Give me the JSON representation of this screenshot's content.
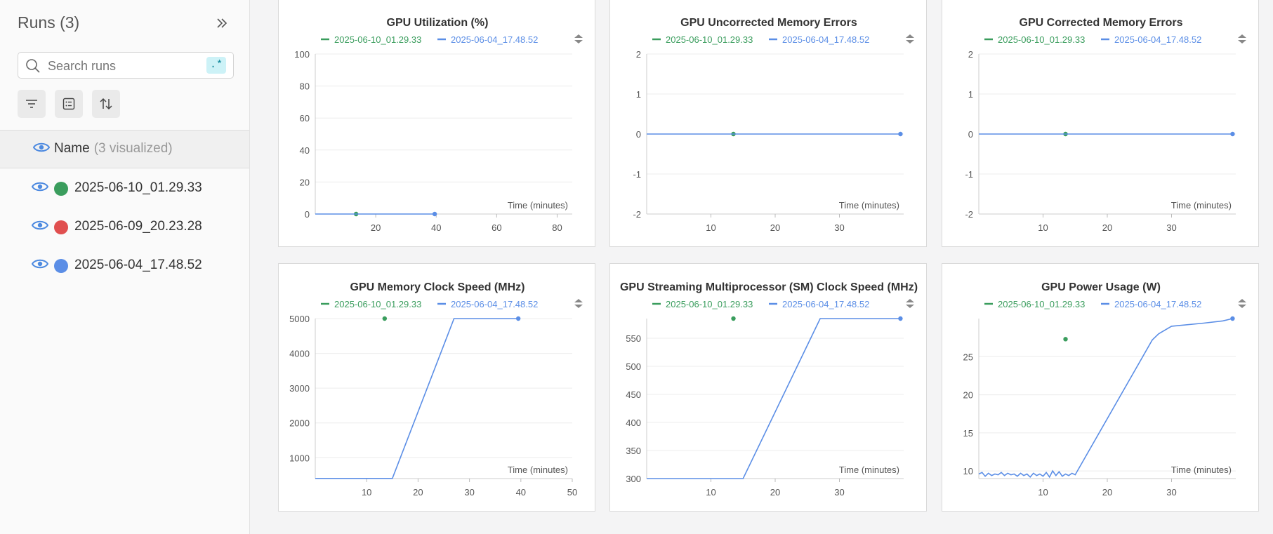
{
  "sidebar": {
    "title": "Runs (3)",
    "search": {
      "placeholder": "Search runs",
      "value": "",
      "regex_label": ".*"
    },
    "name_header": {
      "label": "Name",
      "count": "(3 visualized)"
    },
    "runs": [
      {
        "name": "2025-06-10_01.29.33",
        "color": "#3a9d5d"
      },
      {
        "name": "2025-06-09_20.23.28",
        "color": "#e04f4f"
      },
      {
        "name": "2025-06-04_17.48.52",
        "color": "#5b8ee6"
      }
    ]
  },
  "colors": {
    "green": "#3a9d5d",
    "blue": "#5b8ee6",
    "eye": "#4d8ae0"
  },
  "chart_data": [
    {
      "type": "line",
      "title": "GPU Utilization (%)",
      "xlabel": "Time (minutes)",
      "legend": [
        "2025-06-10_01.29.33",
        "2025-06-04_17.48.52"
      ],
      "xlim": [
        0,
        85
      ],
      "ylim": [
        0,
        100
      ],
      "xticks": [
        20,
        40,
        60,
        80
      ],
      "yticks": [
        0,
        20,
        40,
        60,
        80,
        100
      ],
      "series": [
        {
          "name": "2025-06-10_01.29.33",
          "color": "#3a9d5d",
          "x": [
            13.5
          ],
          "y": [
            0
          ]
        },
        {
          "name": "2025-06-04_17.48.52",
          "color": "#5b8ee6",
          "x": [
            0,
            39.5
          ],
          "y": [
            0,
            0
          ]
        }
      ]
    },
    {
      "type": "line",
      "title": "GPU Uncorrected Memory Errors",
      "xlabel": "Time (minutes)",
      "legend": [
        "2025-06-10_01.29.33",
        "2025-06-04_17.48.52"
      ],
      "xlim": [
        0,
        40
      ],
      "ylim": [
        -2,
        2
      ],
      "xticks": [
        10,
        20,
        30
      ],
      "yticks": [
        -2,
        -1,
        0,
        1,
        2
      ],
      "series": [
        {
          "name": "2025-06-10_01.29.33",
          "color": "#3a9d5d",
          "x": [
            13.5
          ],
          "y": [
            0
          ]
        },
        {
          "name": "2025-06-04_17.48.52",
          "color": "#5b8ee6",
          "x": [
            0,
            39.5
          ],
          "y": [
            0,
            0
          ]
        }
      ]
    },
    {
      "type": "line",
      "title": "GPU Corrected Memory Errors",
      "xlabel": "Time (minutes)",
      "legend": [
        "2025-06-10_01.29.33",
        "2025-06-04_17.48.52"
      ],
      "xlim": [
        0,
        40
      ],
      "ylim": [
        -2,
        2
      ],
      "xticks": [
        10,
        20,
        30
      ],
      "yticks": [
        -2,
        -1,
        0,
        1,
        2
      ],
      "series": [
        {
          "name": "2025-06-10_01.29.33",
          "color": "#3a9d5d",
          "x": [
            13.5
          ],
          "y": [
            0
          ]
        },
        {
          "name": "2025-06-04_17.48.52",
          "color": "#5b8ee6",
          "x": [
            0,
            39.5
          ],
          "y": [
            0,
            0
          ]
        }
      ]
    },
    {
      "type": "line",
      "title": "GPU Memory Clock Speed (MHz)",
      "xlabel": "Time (minutes)",
      "legend": [
        "2025-06-10_01.29.33",
        "2025-06-04_17.48.52"
      ],
      "xlim": [
        0,
        50
      ],
      "ylim": [
        400,
        5000
      ],
      "xticks": [
        10,
        20,
        30,
        40,
        50
      ],
      "yticks": [
        1000,
        2000,
        3000,
        4000,
        5000
      ],
      "series": [
        {
          "name": "2025-06-10_01.29.33",
          "color": "#3a9d5d",
          "x": [
            13.5
          ],
          "y": [
            5000
          ]
        },
        {
          "name": "2025-06-04_17.48.52",
          "color": "#5b8ee6",
          "x": [
            0,
            15,
            27,
            39.5
          ],
          "y": [
            405,
            405,
            5000,
            5000
          ]
        }
      ]
    },
    {
      "type": "line",
      "title": "GPU Streaming Multiprocessor (SM) Clock Speed (MHz)",
      "xlabel": "Time (minutes)",
      "legend": [
        "2025-06-10_01.29.33",
        "2025-06-04_17.48.52"
      ],
      "xlim": [
        0,
        40
      ],
      "ylim": [
        300,
        585
      ],
      "xticks": [
        10,
        20,
        30
      ],
      "yticks": [
        300,
        350,
        400,
        450,
        500,
        550
      ],
      "series": [
        {
          "name": "2025-06-10_01.29.33",
          "color": "#3a9d5d",
          "x": [
            13.5
          ],
          "y": [
            585
          ]
        },
        {
          "name": "2025-06-04_17.48.52",
          "color": "#5b8ee6",
          "x": [
            0,
            15,
            27,
            39.5
          ],
          "y": [
            300,
            300,
            585,
            585
          ]
        }
      ]
    },
    {
      "type": "line",
      "title": "GPU Power Usage (W)",
      "xlabel": "Time (minutes)",
      "legend": [
        "2025-06-10_01.29.33",
        "2025-06-04_17.48.52"
      ],
      "xlim": [
        0,
        40
      ],
      "ylim": [
        9,
        30
      ],
      "xticks": [
        10,
        20,
        30
      ],
      "yticks": [
        10,
        15,
        20,
        25
      ],
      "series": [
        {
          "name": "2025-06-10_01.29.33",
          "color": "#3a9d5d",
          "x": [
            13.5
          ],
          "y": [
            27.3
          ]
        },
        {
          "name": "2025-06-04_17.48.52",
          "color": "#5b8ee6",
          "x": [
            0,
            0.5,
            1,
            1.5,
            2,
            2.5,
            3,
            3.5,
            4,
            4.5,
            5,
            5.5,
            6,
            6.5,
            7,
            7.5,
            8,
            8.5,
            9,
            9.5,
            10,
            10.5,
            11,
            11.5,
            12,
            12.5,
            13,
            13.5,
            14,
            14.5,
            15,
            27,
            28,
            30,
            35,
            38,
            39.5
          ],
          "y": [
            9.6,
            9.8,
            9.3,
            9.7,
            9.4,
            9.6,
            9.5,
            9.8,
            9.4,
            9.7,
            9.5,
            9.6,
            9.3,
            9.7,
            9.4,
            9.6,
            9.2,
            9.7,
            9.4,
            9.6,
            9.3,
            9.8,
            9.2,
            10.0,
            9.4,
            9.9,
            9.3,
            9.6,
            9.4,
            9.7,
            9.5,
            27.2,
            28,
            29,
            29.4,
            29.7,
            30
          ]
        }
      ]
    }
  ]
}
